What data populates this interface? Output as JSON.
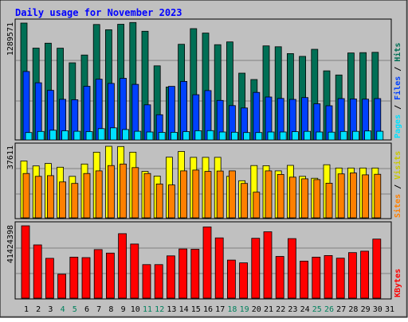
{
  "chart_data": [
    {
      "type": "bar",
      "title": "Daily usage for November 2023",
      "ylabel_parts": [
        "Pages",
        "Files",
        "Hits"
      ],
      "y_tick_label": "1289571",
      "y_tick_value": 1289571,
      "ylim": [
        0,
        1289571
      ],
      "series": [
        {
          "name": "Hits",
          "color": "#006f55",
          "values": [
            1289571,
            1013000,
            1068000,
            1012000,
            851000,
            937000,
            1274000,
            1216000,
            1276000,
            1296000,
            1199000,
            818000,
            583000,
            1055000,
            1228000,
            1179000,
            1051000,
            1082000,
            737000,
            667000,
            1038000,
            1028000,
            953000,
            922000,
            1000000,
            762000,
            717000,
            960000,
            963000,
            967000
          ]
        },
        {
          "name": "Files",
          "color": "#0041ff",
          "values": [
            755000,
            631000,
            547000,
            448000,
            444000,
            592000,
            670000,
            624000,
            680000,
            613000,
            388000,
            278000,
            591000,
            646000,
            499000,
            545000,
            436000,
            379000,
            353000,
            525000,
            474000,
            458000,
            447000,
            468000,
            399000,
            377000,
            456000,
            453000,
            450000,
            456000
          ]
        },
        {
          "name": "Pages",
          "color": "#00e1ff",
          "values": [
            82000,
            94000,
            107000,
            101000,
            96000,
            92000,
            125000,
            133000,
            115000,
            96000,
            88000,
            83000,
            84000,
            92000,
            102000,
            103000,
            88000,
            85000,
            82000,
            82000,
            88000,
            88000,
            91000,
            95000,
            88000,
            86000,
            94000,
            95000,
            99000,
            96000
          ]
        }
      ]
    },
    {
      "type": "bar",
      "ylabel_parts": [
        "Sites",
        "Visits"
      ],
      "y_tick_label": "37611",
      "y_tick_value": 37611,
      "ylim": [
        0,
        37611
      ],
      "series": [
        {
          "name": "Visits",
          "color": "#ffff00",
          "values": [
            29900,
            27300,
            28600,
            26600,
            21800,
            28300,
            34500,
            37611,
            37500,
            34500,
            24400,
            22000,
            31900,
            34900,
            31800,
            31800,
            31800,
            21800,
            19500,
            27500,
            27400,
            24700,
            27600,
            21800,
            20800,
            27900,
            26200,
            26200,
            26200,
            26200
          ]
        },
        {
          "name": "Sites",
          "color": "#ff8000",
          "values": [
            23300,
            21800,
            22200,
            18900,
            18100,
            23300,
            24700,
            27500,
            28300,
            26400,
            23300,
            17800,
            17300,
            24700,
            25100,
            24400,
            24600,
            24700,
            18100,
            13500,
            24700,
            22800,
            21400,
            20500,
            20100,
            18200,
            23100,
            23600,
            22600,
            22900
          ]
        }
      ]
    },
    {
      "type": "bar",
      "ylabel_parts": [
        "KBytes"
      ],
      "y_tick_label": "41424398",
      "y_tick_value": 41424398,
      "ylim": [
        0,
        41424398
      ],
      "series": [
        {
          "name": "KBytes",
          "color": "#ff0000",
          "values": [
            41424398,
            30500000,
            22800000,
            13700000,
            23500000,
            23200000,
            27800000,
            25800000,
            36900000,
            31000000,
            19200000,
            19200000,
            24200000,
            28200000,
            28000000,
            40800000,
            34500000,
            21800000,
            20200000,
            34300000,
            38000000,
            23900000,
            34100000,
            21200000,
            23500000,
            24400000,
            22900000,
            26100000,
            26900000,
            33800000
          ]
        }
      ]
    }
  ],
  "x_labels": [
    "1",
    "2",
    "3",
    "4",
    "5",
    "6",
    "7",
    "8",
    "9",
    "10",
    "11",
    "12",
    "13",
    "14",
    "15",
    "16",
    "17",
    "18",
    "19",
    "20",
    "21",
    "22",
    "23",
    "24",
    "25",
    "26",
    "27",
    "28",
    "29",
    "30",
    "31"
  ],
  "weekend_days": [
    4,
    5,
    11,
    12,
    18,
    19,
    25,
    26
  ],
  "colors": {
    "background": "#c0c0c0",
    "title": "#0000ff",
    "grid": "#808080",
    "weekday_label": "#000000",
    "weekend_label": "#00805c"
  }
}
